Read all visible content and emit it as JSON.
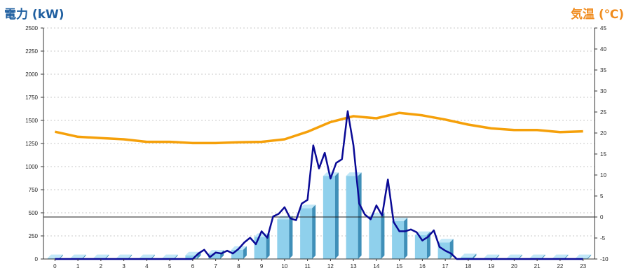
{
  "chart_data": {
    "type": "bar+line",
    "left_axis": {
      "title": "電力 (kW)",
      "min": 0,
      "max": 2500,
      "step": 250,
      "ticks": [
        "0",
        "250",
        "500",
        "750",
        "1000",
        "1250",
        "1500",
        "1750",
        "2000",
        "2250",
        "2500"
      ]
    },
    "right_axis": {
      "title": "気温 (℃)",
      "min": -10,
      "max": 45,
      "step": 5,
      "ticks": [
        "-10",
        "-5",
        "0",
        "5",
        "10",
        "15",
        "20",
        "25",
        "30",
        "35",
        "40",
        "45"
      ]
    },
    "categories": [
      "0",
      "1",
      "2",
      "3",
      "4",
      "5",
      "6",
      "7",
      "8",
      "9",
      "10",
      "11",
      "12",
      "13",
      "14",
      "15",
      "16",
      "17",
      "18",
      "19",
      "20",
      "21",
      "22",
      "23"
    ],
    "grid": true,
    "colors": {
      "bar_front": "#8fd0ec",
      "bar_side": "#3f8fb8",
      "bar_top": "#c2e8f8",
      "power_line": "#0a0a96",
      "temp_line": "#f5a00a",
      "left_title": "#1f5fa0",
      "right_title": "#f08c1e"
    },
    "series": [
      {
        "type": "bar",
        "axis": "left",
        "values": [
          10,
          10,
          10,
          10,
          10,
          10,
          40,
          60,
          100,
          240,
          430,
          550,
          900,
          900,
          460,
          410,
          260,
          180,
          20,
          10,
          10,
          10,
          10,
          10
        ]
      },
      {
        "type": "line",
        "axis": "left",
        "x": [
          0,
          0.5,
          1,
          1.5,
          2,
          2.5,
          3,
          3.5,
          4,
          4.5,
          5,
          5.5,
          6,
          6.25,
          6.5,
          6.75,
          7,
          7.25,
          7.5,
          7.75,
          8,
          8.25,
          8.5,
          8.75,
          9,
          9.25,
          9.5,
          9.75,
          10,
          10.25,
          10.5,
          10.75,
          11,
          11.25,
          11.5,
          11.75,
          12,
          12.25,
          12.5,
          12.75,
          13,
          13.25,
          13.5,
          13.75,
          14,
          14.25,
          14.5,
          14.75,
          15,
          15.25,
          15.5,
          15.75,
          16,
          16.25,
          16.5,
          16.75,
          17,
          17.25,
          17.5,
          17.75,
          18,
          18.5,
          19,
          20,
          21,
          22,
          23
        ],
        "values": [
          0,
          0,
          0,
          0,
          0,
          0,
          0,
          0,
          0,
          0,
          0,
          0,
          0,
          60,
          100,
          20,
          70,
          60,
          90,
          60,
          110,
          180,
          230,
          160,
          300,
          230,
          460,
          490,
          560,
          440,
          420,
          600,
          640,
          1230,
          980,
          1150,
          870,
          1040,
          1080,
          1600,
          1230,
          600,
          480,
          430,
          580,
          470,
          860,
          400,
          300,
          300,
          320,
          290,
          200,
          240,
          310,
          130,
          90,
          60,
          0,
          0,
          0,
          0,
          0,
          0,
          0,
          0,
          0
        ]
      },
      {
        "type": "line",
        "axis": "right",
        "x": [
          0,
          1,
          2,
          3,
          4,
          5,
          6,
          7,
          8,
          9,
          10,
          11,
          12,
          13,
          14,
          15,
          16,
          17,
          18,
          19,
          20,
          21,
          22,
          23
        ],
        "values": [
          20.3,
          19.1,
          18.8,
          18.5,
          17.9,
          17.9,
          17.6,
          17.6,
          17.8,
          17.9,
          18.5,
          20.3,
          22.6,
          24,
          23.5,
          24.8,
          24.2,
          23.2,
          22,
          21.1,
          20.7,
          20.7,
          20.2,
          20.4
        ]
      }
    ],
    "reference_line": {
      "axis": "left",
      "value": 455
    }
  }
}
